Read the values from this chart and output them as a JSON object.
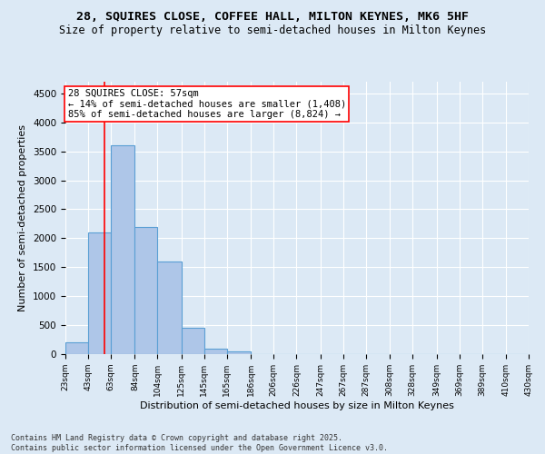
{
  "title_line1": "28, SQUIRES CLOSE, COFFEE HALL, MILTON KEYNES, MK6 5HF",
  "title_line2": "Size of property relative to semi-detached houses in Milton Keynes",
  "xlabel": "Distribution of semi-detached houses by size in Milton Keynes",
  "ylabel": "Number of semi-detached properties",
  "footnote": "Contains HM Land Registry data © Crown copyright and database right 2025.\nContains public sector information licensed under the Open Government Licence v3.0.",
  "bar_edges": [
    23,
    43,
    63,
    84,
    104,
    125,
    145,
    165,
    186,
    206,
    226,
    247,
    267,
    287,
    308,
    328,
    349,
    369,
    389,
    410,
    430
  ],
  "bar_heights": [
    200,
    2100,
    3600,
    2200,
    1600,
    450,
    100,
    50,
    0,
    0,
    0,
    0,
    0,
    0,
    0,
    0,
    0,
    0,
    0,
    0
  ],
  "bar_color": "#aec6e8",
  "bar_edge_color": "#5a9fd4",
  "bar_linewidth": 0.8,
  "vline_x": 57,
  "vline_color": "red",
  "vline_linewidth": 1.2,
  "annotation_title": "28 SQUIRES CLOSE: 57sqm",
  "annotation_line1": "← 14% of semi-detached houses are smaller (1,408)",
  "annotation_line2": "85% of semi-detached houses are larger (8,824) →",
  "annotation_box_color": "white",
  "annotation_box_edge_color": "red",
  "ylim": [
    0,
    4700
  ],
  "xlim": [
    23,
    430
  ],
  "bg_color": "#dce9f5",
  "plot_bg_color": "#dce9f5",
  "tick_labels": [
    "23sqm",
    "43sqm",
    "63sqm",
    "84sqm",
    "104sqm",
    "125sqm",
    "145sqm",
    "165sqm",
    "186sqm",
    "206sqm",
    "226sqm",
    "247sqm",
    "267sqm",
    "287sqm",
    "308sqm",
    "328sqm",
    "349sqm",
    "369sqm",
    "389sqm",
    "410sqm",
    "430sqm"
  ],
  "ytick_values": [
    0,
    500,
    1000,
    1500,
    2000,
    2500,
    3000,
    3500,
    4000,
    4500
  ],
  "title_fontsize": 9.5,
  "subtitle_fontsize": 8.5,
  "axis_label_fontsize": 8,
  "tick_fontsize": 6.5,
  "annotation_fontsize": 7.5,
  "footnote_fontsize": 6
}
